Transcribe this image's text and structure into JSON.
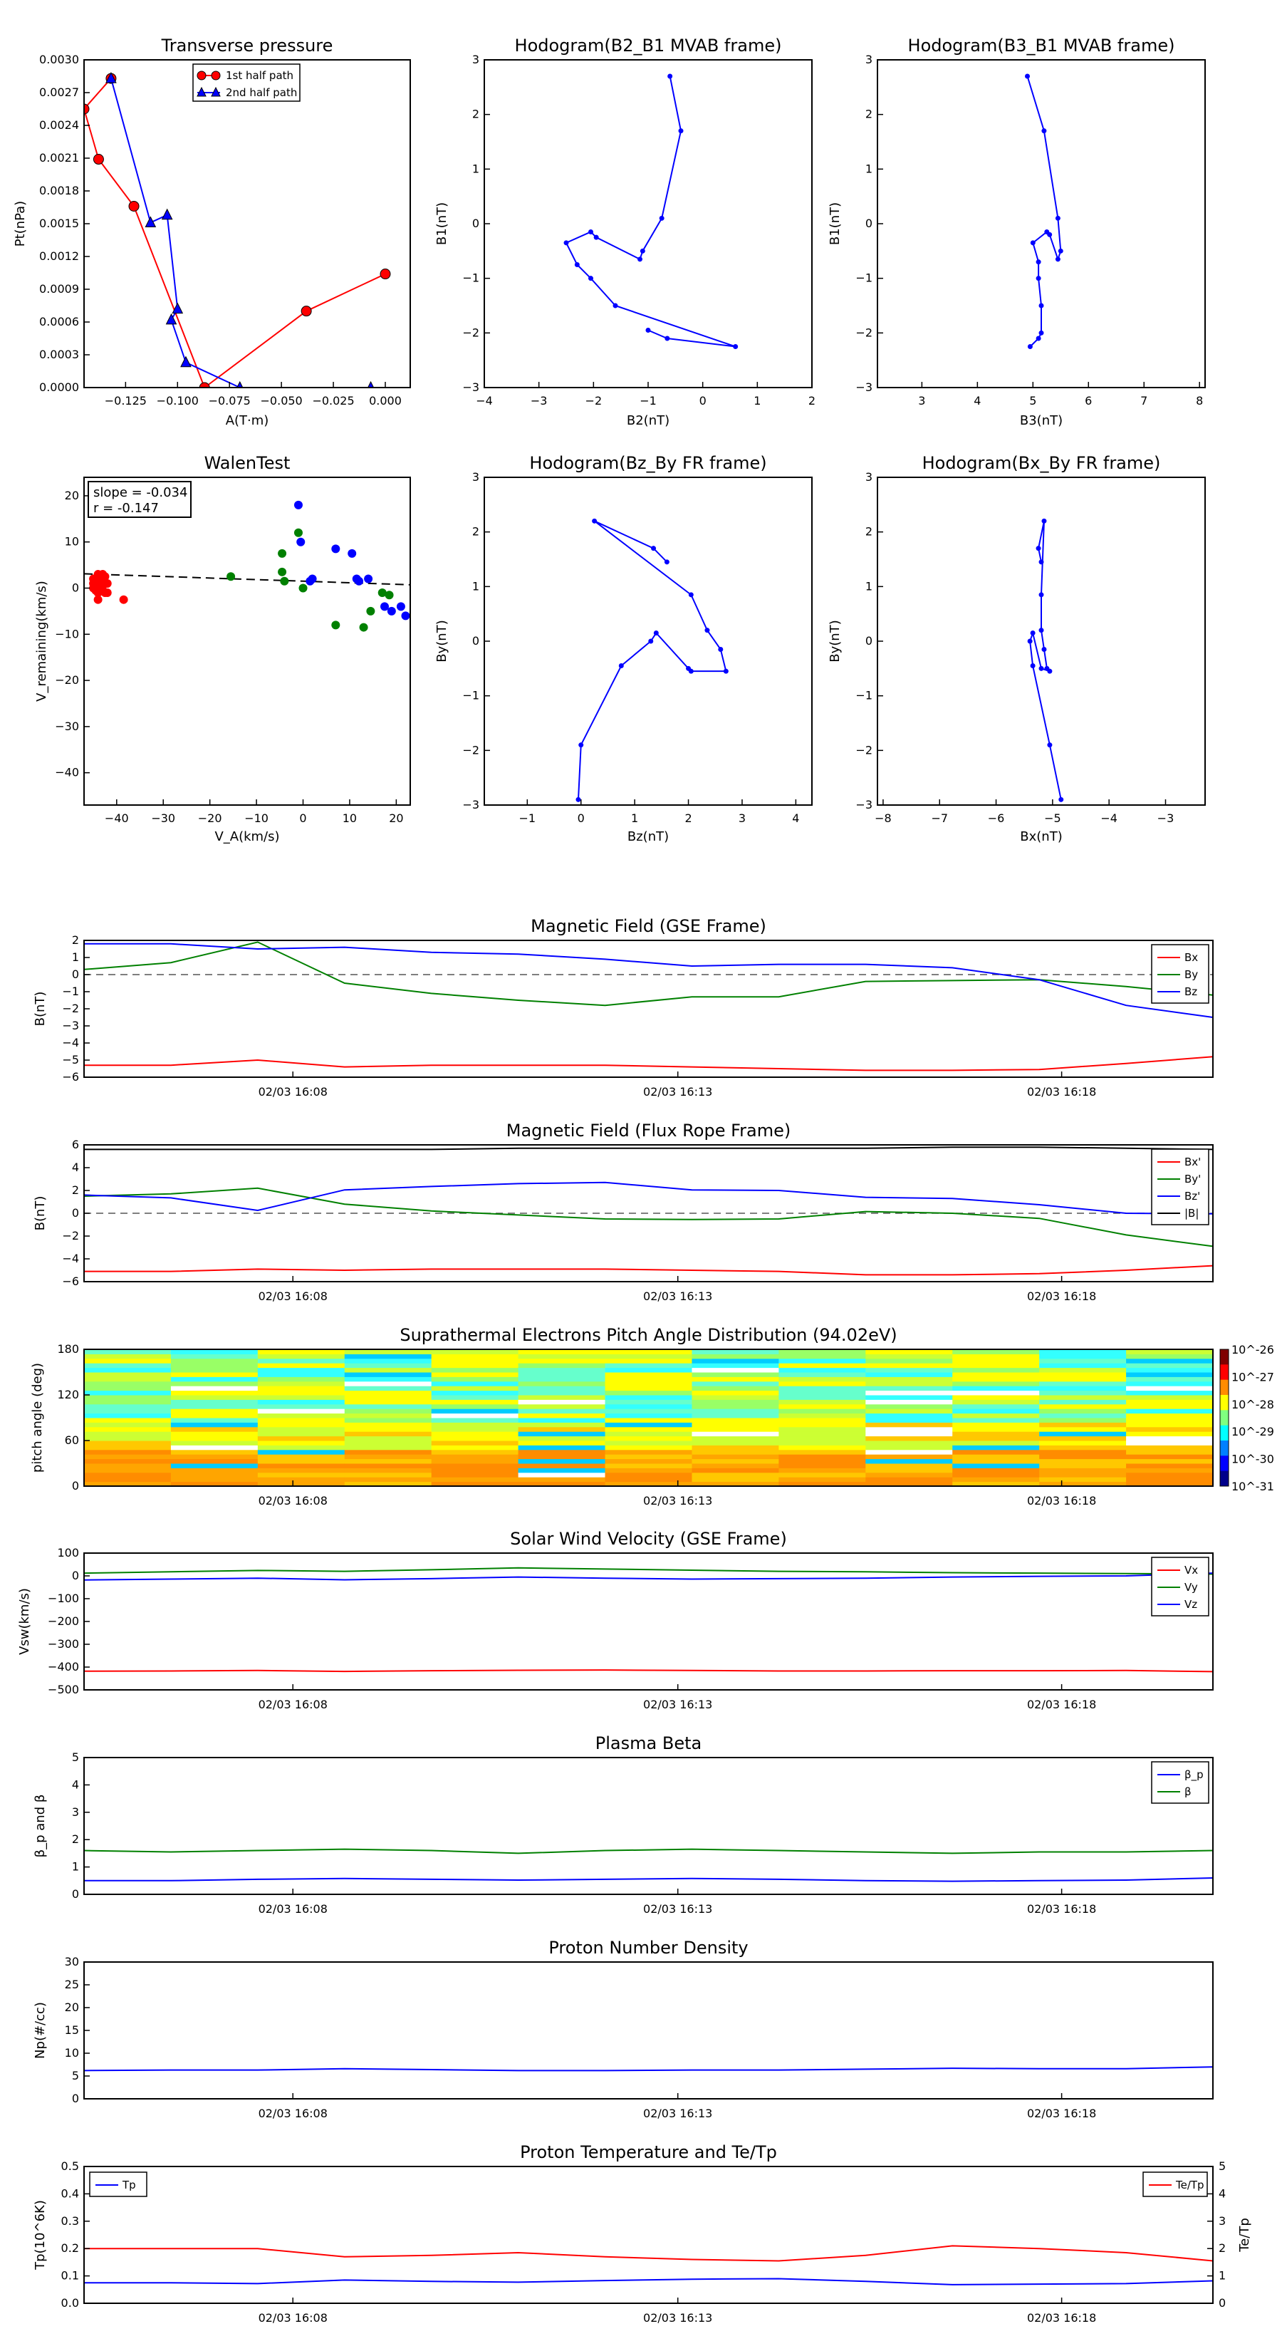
{
  "colors": {
    "red": "#ff0000",
    "green": "#008000",
    "blue": "#0000ff",
    "black": "#000000"
  },
  "chart_data": [
    {
      "id": "transverse_pressure",
      "type": "line",
      "title": "Transverse pressure",
      "xlabel": "A(T·m)",
      "ylabel": "Pt(nPa)",
      "xlim": [
        -0.145,
        0.012
      ],
      "ylim": [
        0,
        0.003
      ],
      "xticks": [
        -0.125,
        -0.1,
        -0.075,
        -0.05,
        -0.025,
        0.0
      ],
      "xtick_labels": [
        "−0.125",
        "−0.100",
        "−0.075",
        "−0.050",
        "−0.025",
        "0.000"
      ],
      "yticks": [
        0,
        0.0003,
        0.0006,
        0.0009,
        0.0012,
        0.0015,
        0.0018,
        0.0021,
        0.0024,
        0.0027,
        0.003
      ],
      "ytick_labels": [
        "0.0000",
        "0.0003",
        "0.0006",
        "0.0009",
        "0.0012",
        "0.0015",
        "0.0018",
        "0.0021",
        "0.0024",
        "0.0027",
        "0.0030"
      ],
      "legend_position": "top-right",
      "series": [
        {
          "name": "1st half path",
          "color": "red",
          "marker": "circle",
          "x": [
            0.0,
            -0.038,
            -0.087,
            -0.121,
            -0.138,
            -0.145,
            -0.132
          ],
          "y": [
            0.00104,
            0.0007,
            0.0,
            0.00166,
            0.00209,
            0.00255,
            0.00283
          ]
        },
        {
          "name": "2nd half path",
          "color": "blue",
          "marker": "triangle",
          "x": [
            -0.132,
            -0.113,
            -0.105,
            -0.1,
            -0.103,
            -0.096,
            -0.07,
            -0.007
          ],
          "y": [
            0.00283,
            0.00151,
            0.00158,
            0.00072,
            0.00062,
            0.00023,
            0.0,
            0.0
          ]
        }
      ]
    },
    {
      "id": "hodo_b2_b1",
      "type": "line",
      "title": "Hodogram(B2_B1 MVAB frame)",
      "xlabel": "B2(nT)",
      "ylabel": "B1(nT)",
      "xlim": [
        -4,
        2
      ],
      "ylim": [
        -3,
        3
      ],
      "xticks": [
        -4,
        -3,
        -2,
        -1,
        0,
        1,
        2
      ],
      "xtick_labels": [
        "−4",
        "−3",
        "−2",
        "−1",
        "0",
        "1",
        "2"
      ],
      "yticks": [
        -3,
        -2,
        -1,
        0,
        1,
        2,
        3
      ],
      "ytick_labels": [
        "−3",
        "−2",
        "−1",
        "0",
        "1",
        "2",
        "3"
      ],
      "series": [
        {
          "color": "blue",
          "x": [
            -0.6,
            -0.4,
            -0.75,
            -1.1,
            -1.15,
            -1.95,
            -2.05,
            -2.5,
            -2.3,
            -2.05,
            -1.6,
            0.6,
            -0.65,
            -1.0
          ],
          "y": [
            2.7,
            1.7,
            0.1,
            -0.5,
            -0.65,
            -0.25,
            -0.15,
            -0.35,
            -0.75,
            -1.0,
            -1.5,
            -2.25,
            -2.1,
            -1.95
          ]
        }
      ]
    },
    {
      "id": "hodo_b3_b1",
      "type": "line",
      "title": "Hodogram(B3_B1 MVAB frame)",
      "xlabel": "B3(nT)",
      "ylabel": "B1(nT)",
      "xlim": [
        2.2,
        8.1
      ],
      "ylim": [
        -3,
        3
      ],
      "xticks": [
        3,
        4,
        5,
        6,
        7,
        8
      ],
      "xtick_labels": [
        "3",
        "4",
        "5",
        "6",
        "7",
        "8"
      ],
      "yticks": [
        -3,
        -2,
        -1,
        0,
        1,
        2,
        3
      ],
      "ytick_labels": [
        "−3",
        "−2",
        "−1",
        "0",
        "1",
        "2",
        "3"
      ],
      "series": [
        {
          "color": "blue",
          "x": [
            4.9,
            5.2,
            5.45,
            5.5,
            5.45,
            5.3,
            5.25,
            5.0,
            5.1,
            5.1,
            5.15,
            5.15,
            5.1,
            4.95
          ],
          "y": [
            2.7,
            1.7,
            0.1,
            -0.5,
            -0.65,
            -0.2,
            -0.15,
            -0.35,
            -0.7,
            -1.0,
            -1.5,
            -2.0,
            -2.1,
            -2.25
          ]
        }
      ]
    },
    {
      "id": "walen_test",
      "type": "scatter",
      "title": "WalenTest",
      "xlabel": "V_A(km/s)",
      "ylabel": "V_remaining(km/s)",
      "xlim": [
        -47,
        23
      ],
      "ylim": [
        -47,
        24
      ],
      "xticks": [
        -40,
        -30,
        -20,
        -10,
        0,
        10,
        20
      ],
      "xtick_labels": [
        "−40",
        "−30",
        "−20",
        "−10",
        "0",
        "10",
        "20"
      ],
      "yticks": [
        -40,
        -30,
        -20,
        -10,
        0,
        10,
        20
      ],
      "ytick_labels": [
        "−40",
        "−30",
        "−20",
        "−10",
        "0",
        "10",
        "20"
      ],
      "annotation": [
        "slope = -0.034",
        "r = -0.147"
      ],
      "fit": {
        "slope": -0.034,
        "intercept": 1.5
      },
      "series": [
        {
          "color": "red",
          "x": [
            -45,
            -44.5,
            -44,
            -43.5,
            -43,
            -42.5,
            -45,
            -44,
            -43,
            -42,
            -44.5,
            -43.5,
            -42.5,
            -45,
            -44,
            -43,
            -42,
            -38.5,
            -44,
            -43
          ],
          "y": [
            1,
            2,
            3,
            1.5,
            0.5,
            2.5,
            0,
            -1,
            -0.5,
            1,
            -0.5,
            0.5,
            -1,
            2,
            1,
            3,
            -1,
            -2.5,
            -2.5,
            -0.5
          ]
        },
        {
          "color": "green",
          "x": [
            -15.5,
            -4.5,
            -4.5,
            -4,
            -1,
            0,
            7,
            13,
            14.5,
            17,
            18.5
          ],
          "y": [
            2.5,
            7.5,
            3.5,
            1.5,
            12,
            0,
            -8,
            -8.5,
            -5,
            -1,
            -1.5
          ]
        },
        {
          "color": "blue",
          "x": [
            -1,
            -0.5,
            1.5,
            2,
            7,
            10.5,
            11.5,
            12,
            14,
            17.5,
            19,
            21,
            22
          ],
          "y": [
            18,
            10,
            1.5,
            2,
            8.5,
            7.5,
            2,
            1.5,
            2,
            -4,
            -5,
            -4,
            -6
          ]
        }
      ]
    },
    {
      "id": "hodo_bz_by",
      "type": "line",
      "title": "Hodogram(Bz_By FR frame)",
      "xlabel": "Bz(nT)",
      "ylabel": "By(nT)",
      "xlim": [
        -1.8,
        4.3
      ],
      "ylim": [
        -3,
        3
      ],
      "xticks": [
        -1,
        0,
        1,
        2,
        3,
        4
      ],
      "xtick_labels": [
        "−1",
        "0",
        "1",
        "2",
        "3",
        "4"
      ],
      "yticks": [
        -3,
        -2,
        -1,
        0,
        1,
        2,
        3
      ],
      "ytick_labels": [
        "−3",
        "−2",
        "−1",
        "0",
        "1",
        "2",
        "3"
      ],
      "series": [
        {
          "color": "blue",
          "x": [
            1.6,
            1.35,
            0.25,
            2.05,
            2.35,
            2.6,
            2.7,
            2.05,
            2.0,
            1.4,
            1.3,
            0.75,
            0.0,
            -0.05
          ],
          "y": [
            1.45,
            1.7,
            2.2,
            0.85,
            0.2,
            -0.15,
            -0.55,
            -0.55,
            -0.5,
            0.15,
            0.0,
            -0.45,
            -1.9,
            -2.9
          ]
        }
      ]
    },
    {
      "id": "hodo_bx_by",
      "type": "line",
      "title": "Hodogram(Bx_By FR frame)",
      "xlabel": "Bx(nT)",
      "ylabel": "By(nT)",
      "xlim": [
        -8.1,
        -2.3
      ],
      "ylim": [
        -3,
        3
      ],
      "xticks": [
        -8,
        -7,
        -6,
        -5,
        -4,
        -3
      ],
      "xtick_labels": [
        "−8",
        "−7",
        "−6",
        "−5",
        "−4",
        "−3"
      ],
      "yticks": [
        -3,
        -2,
        -1,
        0,
        1,
        2,
        3
      ],
      "ytick_labels": [
        "−3",
        "−2",
        "−1",
        "0",
        "1",
        "2",
        "3"
      ],
      "series": [
        {
          "color": "blue",
          "x": [
            -5.2,
            -5.25,
            -5.15,
            -5.2,
            -5.2,
            -5.15,
            -5.1,
            -5.05,
            -5.2,
            -5.35,
            -5.4,
            -5.35,
            -5.05,
            -4.85
          ],
          "y": [
            1.45,
            1.7,
            2.2,
            0.85,
            0.2,
            -0.15,
            -0.5,
            -0.55,
            -0.5,
            0.15,
            0.0,
            -0.45,
            -1.9,
            -2.9
          ]
        }
      ]
    },
    {
      "id": "mag_gse",
      "type": "line",
      "title": "Magnetic Field (GSE Frame)",
      "ylabel": "B(nT)",
      "ylim": [
        -6,
        2
      ],
      "yticks": [
        -6,
        -5,
        -4,
        -3,
        -2,
        -1,
        0,
        1,
        2
      ],
      "ytick_labels": [
        "−6",
        "−5",
        "−4",
        "−3",
        "−2",
        "−1",
        "0",
        "1",
        "2"
      ],
      "xticks": [
        "02/03 16:08",
        "02/03 16:13",
        "02/03 16:18"
      ],
      "legend_position": "right",
      "zero_line": true,
      "series": [
        {
          "name": "Bx",
          "color": "red",
          "y": [
            -5.3,
            -5.3,
            -5.0,
            -5.4,
            -5.3,
            -5.3,
            -5.3,
            -5.4,
            -5.5,
            -5.6,
            -5.6,
            -5.55,
            -5.2,
            -4.8
          ]
        },
        {
          "name": "By",
          "color": "green",
          "y": [
            0.3,
            0.7,
            1.9,
            -0.5,
            -1.1,
            -1.5,
            -1.8,
            -1.3,
            -1.3,
            -0.4,
            -0.35,
            -0.3,
            -0.7,
            -1.2
          ]
        },
        {
          "name": "Bz",
          "color": "blue",
          "y": [
            1.8,
            1.8,
            1.5,
            1.6,
            1.3,
            1.2,
            0.9,
            0.5,
            0.6,
            0.6,
            0.4,
            -0.3,
            -1.8,
            -2.5
          ]
        }
      ]
    },
    {
      "id": "mag_fr",
      "type": "line",
      "title": "Magnetic Field (Flux Rope Frame)",
      "ylabel": "B(nT)",
      "ylim": [
        -6,
        6
      ],
      "yticks": [
        -6,
        -4,
        -2,
        0,
        2,
        4,
        6
      ],
      "ytick_labels": [
        "−6",
        "−4",
        "−2",
        "0",
        "2",
        "4",
        "6"
      ],
      "xticks": [
        "02/03 16:08",
        "02/03 16:13",
        "02/03 16:18"
      ],
      "legend_position": "right",
      "zero_line": true,
      "series": [
        {
          "name": "Bx'",
          "color": "red",
          "y": [
            -5.1,
            -5.1,
            -4.9,
            -5.0,
            -4.9,
            -4.9,
            -4.9,
            -5.0,
            -5.1,
            -5.4,
            -5.4,
            -5.3,
            -5.0,
            -4.6
          ]
        },
        {
          "name": "By'",
          "color": "green",
          "y": [
            1.5,
            1.7,
            2.2,
            0.8,
            0.2,
            -0.15,
            -0.5,
            -0.55,
            -0.5,
            0.15,
            0.0,
            -0.45,
            -1.9,
            -2.9
          ]
        },
        {
          "name": "Bz'",
          "color": "blue",
          "y": [
            1.6,
            1.35,
            0.25,
            2.05,
            2.35,
            2.6,
            2.7,
            2.05,
            2.0,
            1.4,
            1.3,
            0.75,
            0.0,
            -0.05
          ]
        },
        {
          "name": "|B|",
          "color": "black",
          "y": [
            5.6,
            5.6,
            5.6,
            5.6,
            5.6,
            5.7,
            5.7,
            5.7,
            5.7,
            5.7,
            5.8,
            5.8,
            5.7,
            5.6
          ]
        }
      ]
    },
    {
      "id": "pad",
      "type": "heatmap",
      "title": "Suprathermal Electrons Pitch Angle Distribution (94.02eV)",
      "ylabel": "pitch angle (deg)",
      "ylim": [
        0,
        180
      ],
      "yticks": [
        0,
        60,
        120,
        180
      ],
      "ytick_labels": [
        "0",
        "60",
        "120",
        "180"
      ],
      "xticks": [
        "02/03 16:08",
        "02/03 16:13",
        "02/03 16:18"
      ],
      "colorbar_labels": [
        "10^-26",
        "10^-27",
        "10^-28",
        "10^-29",
        "10^-30",
        "10^-31"
      ],
      "columns": 13,
      "bins": 30
    },
    {
      "id": "velocity",
      "type": "line",
      "title": "Solar Wind Velocity (GSE Frame)",
      "ylabel": "Vsw(km/s)",
      "ylim": [
        -500,
        100
      ],
      "yticks": [
        -500,
        -400,
        -300,
        -200,
        -100,
        0,
        100
      ],
      "ytick_labels": [
        "−500",
        "−400",
        "−300",
        "−200",
        "−100",
        "0",
        "100"
      ],
      "xticks": [
        "02/03 16:08",
        "02/03 16:13",
        "02/03 16:18"
      ],
      "legend_position": "right",
      "series": [
        {
          "name": "Vx",
          "color": "red",
          "y": [
            -418,
            -417,
            -415,
            -419,
            -416,
            -414,
            -413,
            -415,
            -417,
            -417,
            -416,
            -416,
            -415,
            -420
          ]
        },
        {
          "name": "Vy",
          "color": "green",
          "y": [
            12,
            18,
            24,
            20,
            27,
            35,
            30,
            25,
            20,
            18,
            14,
            12,
            10,
            8
          ]
        },
        {
          "name": "Vz",
          "color": "blue",
          "y": [
            -18,
            -14,
            -10,
            -17,
            -12,
            -5,
            -10,
            -14,
            -12,
            -10,
            -5,
            -2,
            0,
            12
          ]
        }
      ]
    },
    {
      "id": "beta",
      "type": "line",
      "title": "Plasma Beta",
      "ylabel": "β_p and β",
      "ylim": [
        0,
        5
      ],
      "yticks": [
        0,
        1,
        2,
        3,
        4,
        5
      ],
      "ytick_labels": [
        "0",
        "1",
        "2",
        "3",
        "4",
        "5"
      ],
      "xticks": [
        "02/03 16:08",
        "02/03 16:13",
        "02/03 16:18"
      ],
      "legend_position": "top-right",
      "series": [
        {
          "name": "β_p",
          "color": "blue",
          "y": [
            0.5,
            0.5,
            0.55,
            0.58,
            0.55,
            0.52,
            0.55,
            0.58,
            0.55,
            0.5,
            0.48,
            0.5,
            0.52,
            0.6
          ]
        },
        {
          "name": "β",
          "color": "green",
          "y": [
            1.6,
            1.55,
            1.6,
            1.65,
            1.6,
            1.5,
            1.6,
            1.65,
            1.6,
            1.55,
            1.5,
            1.55,
            1.55,
            1.6
          ]
        }
      ]
    },
    {
      "id": "density",
      "type": "line",
      "title": "Proton Number Density",
      "ylabel": "Np(#/cc)",
      "ylim": [
        0,
        30
      ],
      "yticks": [
        0,
        5,
        10,
        15,
        20,
        25,
        30
      ],
      "ytick_labels": [
        "0",
        "5",
        "10",
        "15",
        "20",
        "25",
        "30"
      ],
      "xticks": [
        "02/03 16:08",
        "02/03 16:13",
        "02/03 16:18"
      ],
      "series": [
        {
          "color": "blue",
          "y": [
            6.2,
            6.3,
            6.3,
            6.6,
            6.4,
            6.2,
            6.2,
            6.3,
            6.3,
            6.5,
            6.7,
            6.6,
            6.6,
            7.0
          ]
        }
      ]
    },
    {
      "id": "temperature",
      "type": "line",
      "title": "Proton Temperature and Te/Tp",
      "ylabel": "Tp(10^6K)",
      "ylabel_right": "Te/Tp",
      "ylim": [
        0,
        0.5
      ],
      "ylim_right": [
        0,
        5
      ],
      "yticks": [
        0,
        0.1,
        0.2,
        0.3,
        0.4,
        0.5
      ],
      "ytick_labels": [
        "0.0",
        "0.1",
        "0.2",
        "0.3",
        "0.4",
        "0.5"
      ],
      "yticks_right": [
        0,
        1,
        2,
        3,
        4,
        5
      ],
      "ytick_labels_right": [
        "0",
        "1",
        "2",
        "3",
        "4",
        "5"
      ],
      "xticks": [
        "02/03 16:08",
        "02/03 16:13",
        "02/03 16:18"
      ],
      "series": [
        {
          "name": "Tp",
          "color": "blue",
          "axis": "left",
          "y": [
            0.075,
            0.075,
            0.072,
            0.085,
            0.08,
            0.077,
            0.083,
            0.088,
            0.09,
            0.08,
            0.068,
            0.07,
            0.072,
            0.082
          ]
        },
        {
          "name": "Te/Tp",
          "color": "red",
          "axis": "right",
          "y": [
            2.0,
            2.0,
            2.0,
            1.7,
            1.75,
            1.85,
            1.7,
            1.6,
            1.55,
            1.75,
            2.1,
            2.0,
            1.85,
            1.55
          ]
        }
      ]
    }
  ]
}
